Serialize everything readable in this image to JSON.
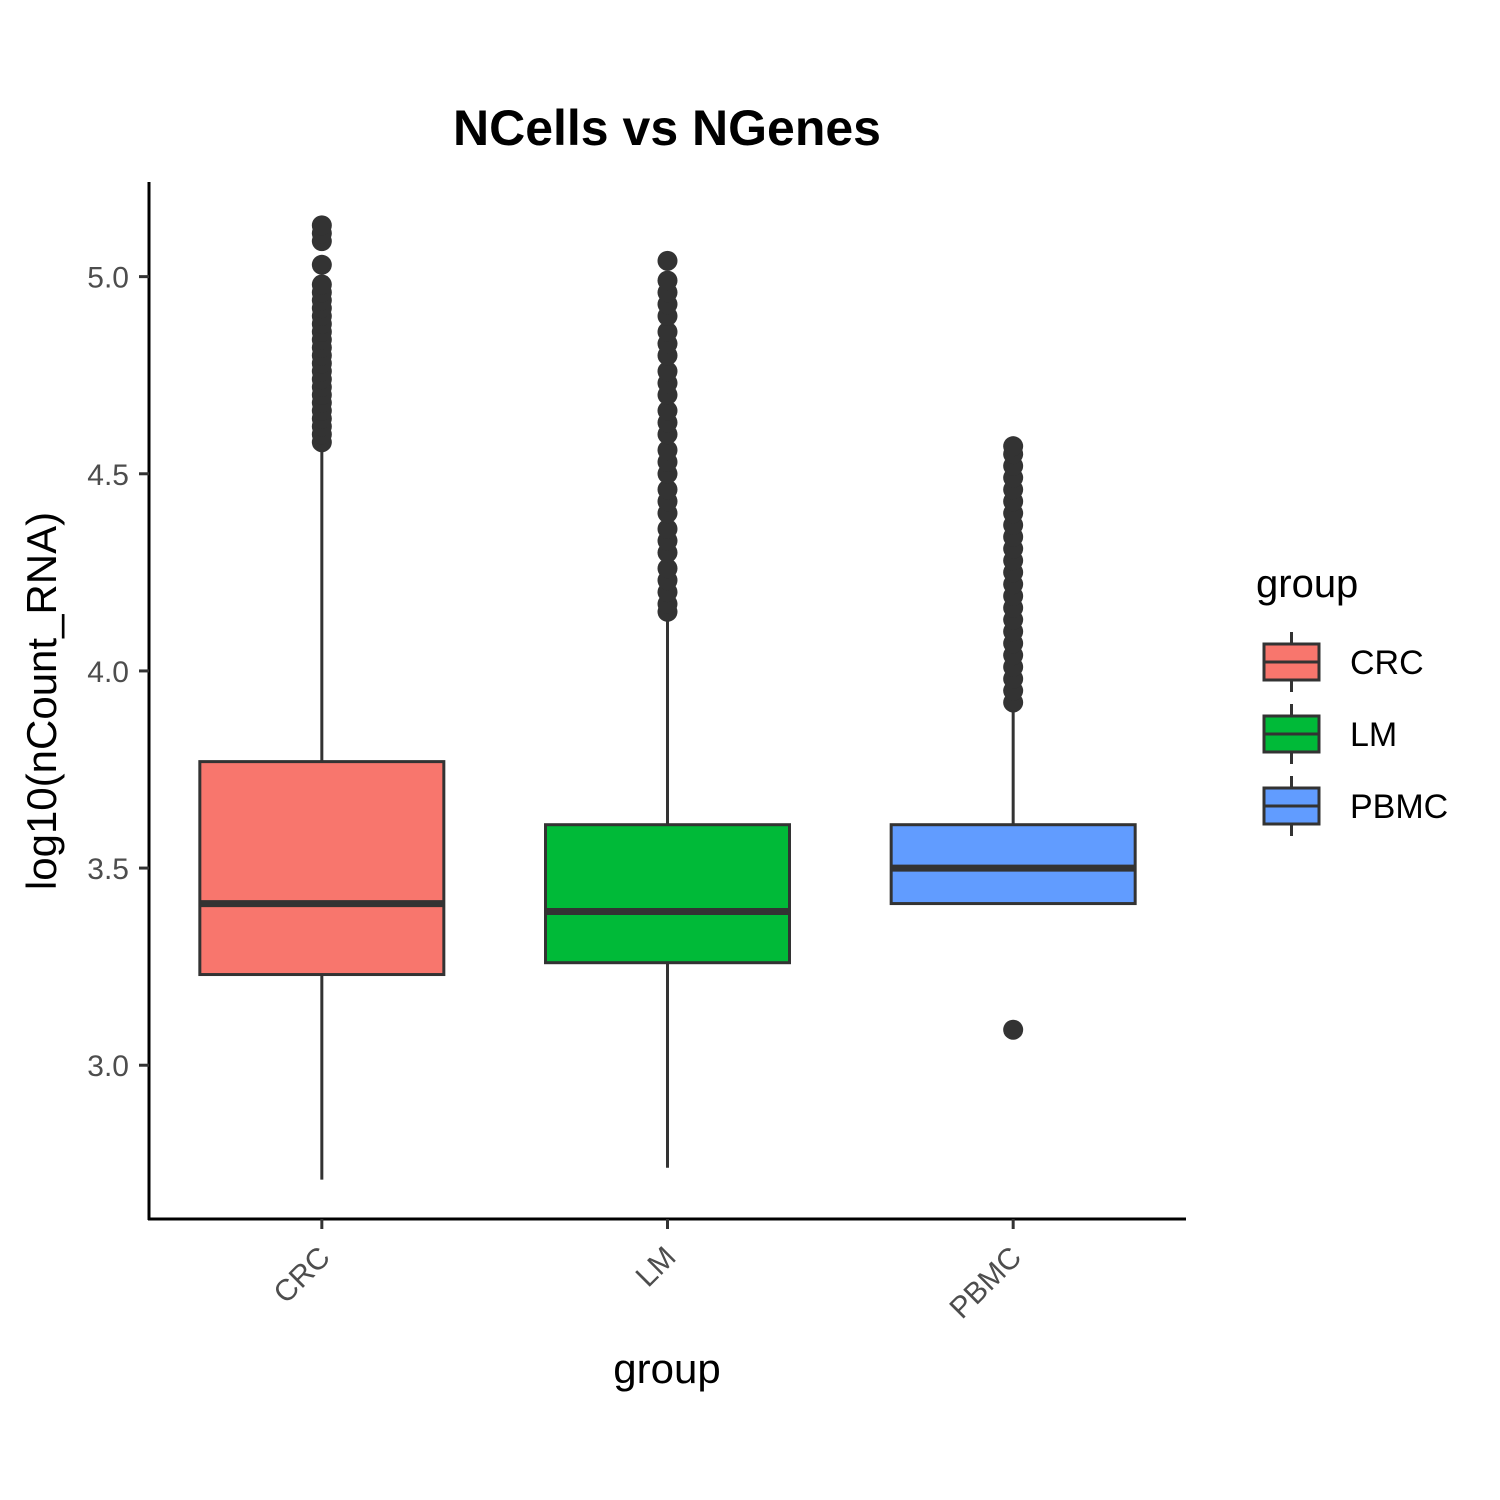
{
  "chart_data": {
    "type": "box",
    "title": "NCells vs NGenes",
    "xlabel": "group",
    "ylabel": "log10(nCount_RNA)",
    "categories": [
      "CRC",
      "LM",
      "PBMC"
    ],
    "ylim": [
      2.61,
      5.24
    ],
    "yticks": [
      "3.0",
      "3.5",
      "4.0",
      "4.5",
      "5.0"
    ],
    "ytick_values": [
      3.0,
      3.5,
      4.0,
      4.5,
      5.0
    ],
    "grid": false,
    "legend_position": "right",
    "legend_title": "group",
    "boxes": [
      {
        "name": "CRC",
        "color": "#F8766D",
        "whisker_low": 2.71,
        "q1": 3.23,
        "median": 3.41,
        "q3": 3.77,
        "whisker_high": 4.58,
        "outliers": [
          4.58,
          4.6,
          4.62,
          4.64,
          4.66,
          4.68,
          4.7,
          4.72,
          4.74,
          4.76,
          4.78,
          4.8,
          4.82,
          4.84,
          4.86,
          4.88,
          4.9,
          4.92,
          4.94,
          4.96,
          4.98,
          5.03,
          5.09,
          5.11,
          5.13
        ]
      },
      {
        "name": "LM",
        "color": "#00BA38",
        "whisker_low": 2.74,
        "q1": 3.26,
        "median": 3.39,
        "q3": 3.61,
        "whisker_high": 4.15,
        "outliers": [
          4.15,
          4.17,
          4.2,
          4.23,
          4.26,
          4.3,
          4.33,
          4.36,
          4.4,
          4.43,
          4.46,
          4.5,
          4.53,
          4.56,
          4.6,
          4.63,
          4.66,
          4.7,
          4.73,
          4.76,
          4.8,
          4.83,
          4.86,
          4.9,
          4.93,
          4.96,
          4.99,
          5.04
        ]
      },
      {
        "name": "PBMC",
        "color": "#619CFF",
        "whisker_low": 3.41,
        "q1": 3.41,
        "median": 3.5,
        "q3": 3.61,
        "whisker_high": 3.92,
        "outliers": [
          3.09,
          3.92,
          3.95,
          3.98,
          4.01,
          4.04,
          4.07,
          4.1,
          4.13,
          4.16,
          4.19,
          4.22,
          4.25,
          4.28,
          4.31,
          4.34,
          4.37,
          4.4,
          4.43,
          4.46,
          4.49,
          4.52,
          4.55,
          4.57
        ]
      }
    ]
  }
}
